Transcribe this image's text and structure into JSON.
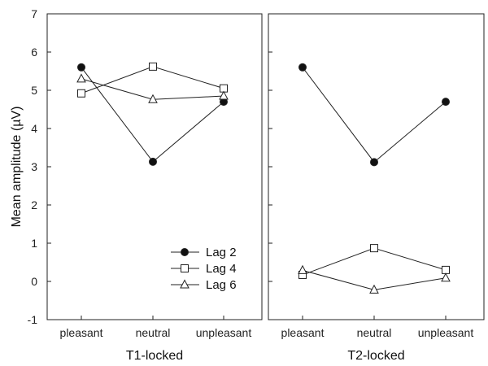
{
  "chart_data": {
    "type": "line",
    "ylabel": "Mean amplitude (µV)",
    "ylim": [
      -1,
      7
    ],
    "yticks": [
      -1,
      0,
      1,
      2,
      3,
      4,
      5,
      6,
      7
    ],
    "categories": [
      "pleasant",
      "neutral",
      "unpleasant"
    ],
    "grid": false,
    "legend": {
      "placement": "lower-right of left panel",
      "entries": [
        "Lag 2",
        "Lag 4",
        "Lag 6"
      ]
    },
    "panels": [
      {
        "xlabel": "T1-locked",
        "series": [
          {
            "name": "Lag 2",
            "marker": "filled-circle",
            "values": [
              5.6,
              3.13,
              4.7
            ]
          },
          {
            "name": "Lag 4",
            "marker": "open-square",
            "values": [
              4.92,
              5.62,
              5.05
            ]
          },
          {
            "name": "Lag 6",
            "marker": "open-triangle",
            "values": [
              5.3,
              4.76,
              4.85
            ]
          }
        ]
      },
      {
        "xlabel": "T2-locked",
        "series": [
          {
            "name": "Lag 2",
            "marker": "filled-circle",
            "values": [
              5.6,
              3.12,
              4.7
            ]
          },
          {
            "name": "Lag 4",
            "marker": "open-square",
            "values": [
              0.17,
              0.87,
              0.3
            ]
          },
          {
            "name": "Lag 6",
            "marker": "open-triangle",
            "values": [
              0.29,
              -0.22,
              0.09
            ]
          }
        ]
      }
    ],
    "colors": {
      "line": "#222222",
      "marker_fill": "#111111",
      "open_fill": "#ffffff"
    }
  }
}
